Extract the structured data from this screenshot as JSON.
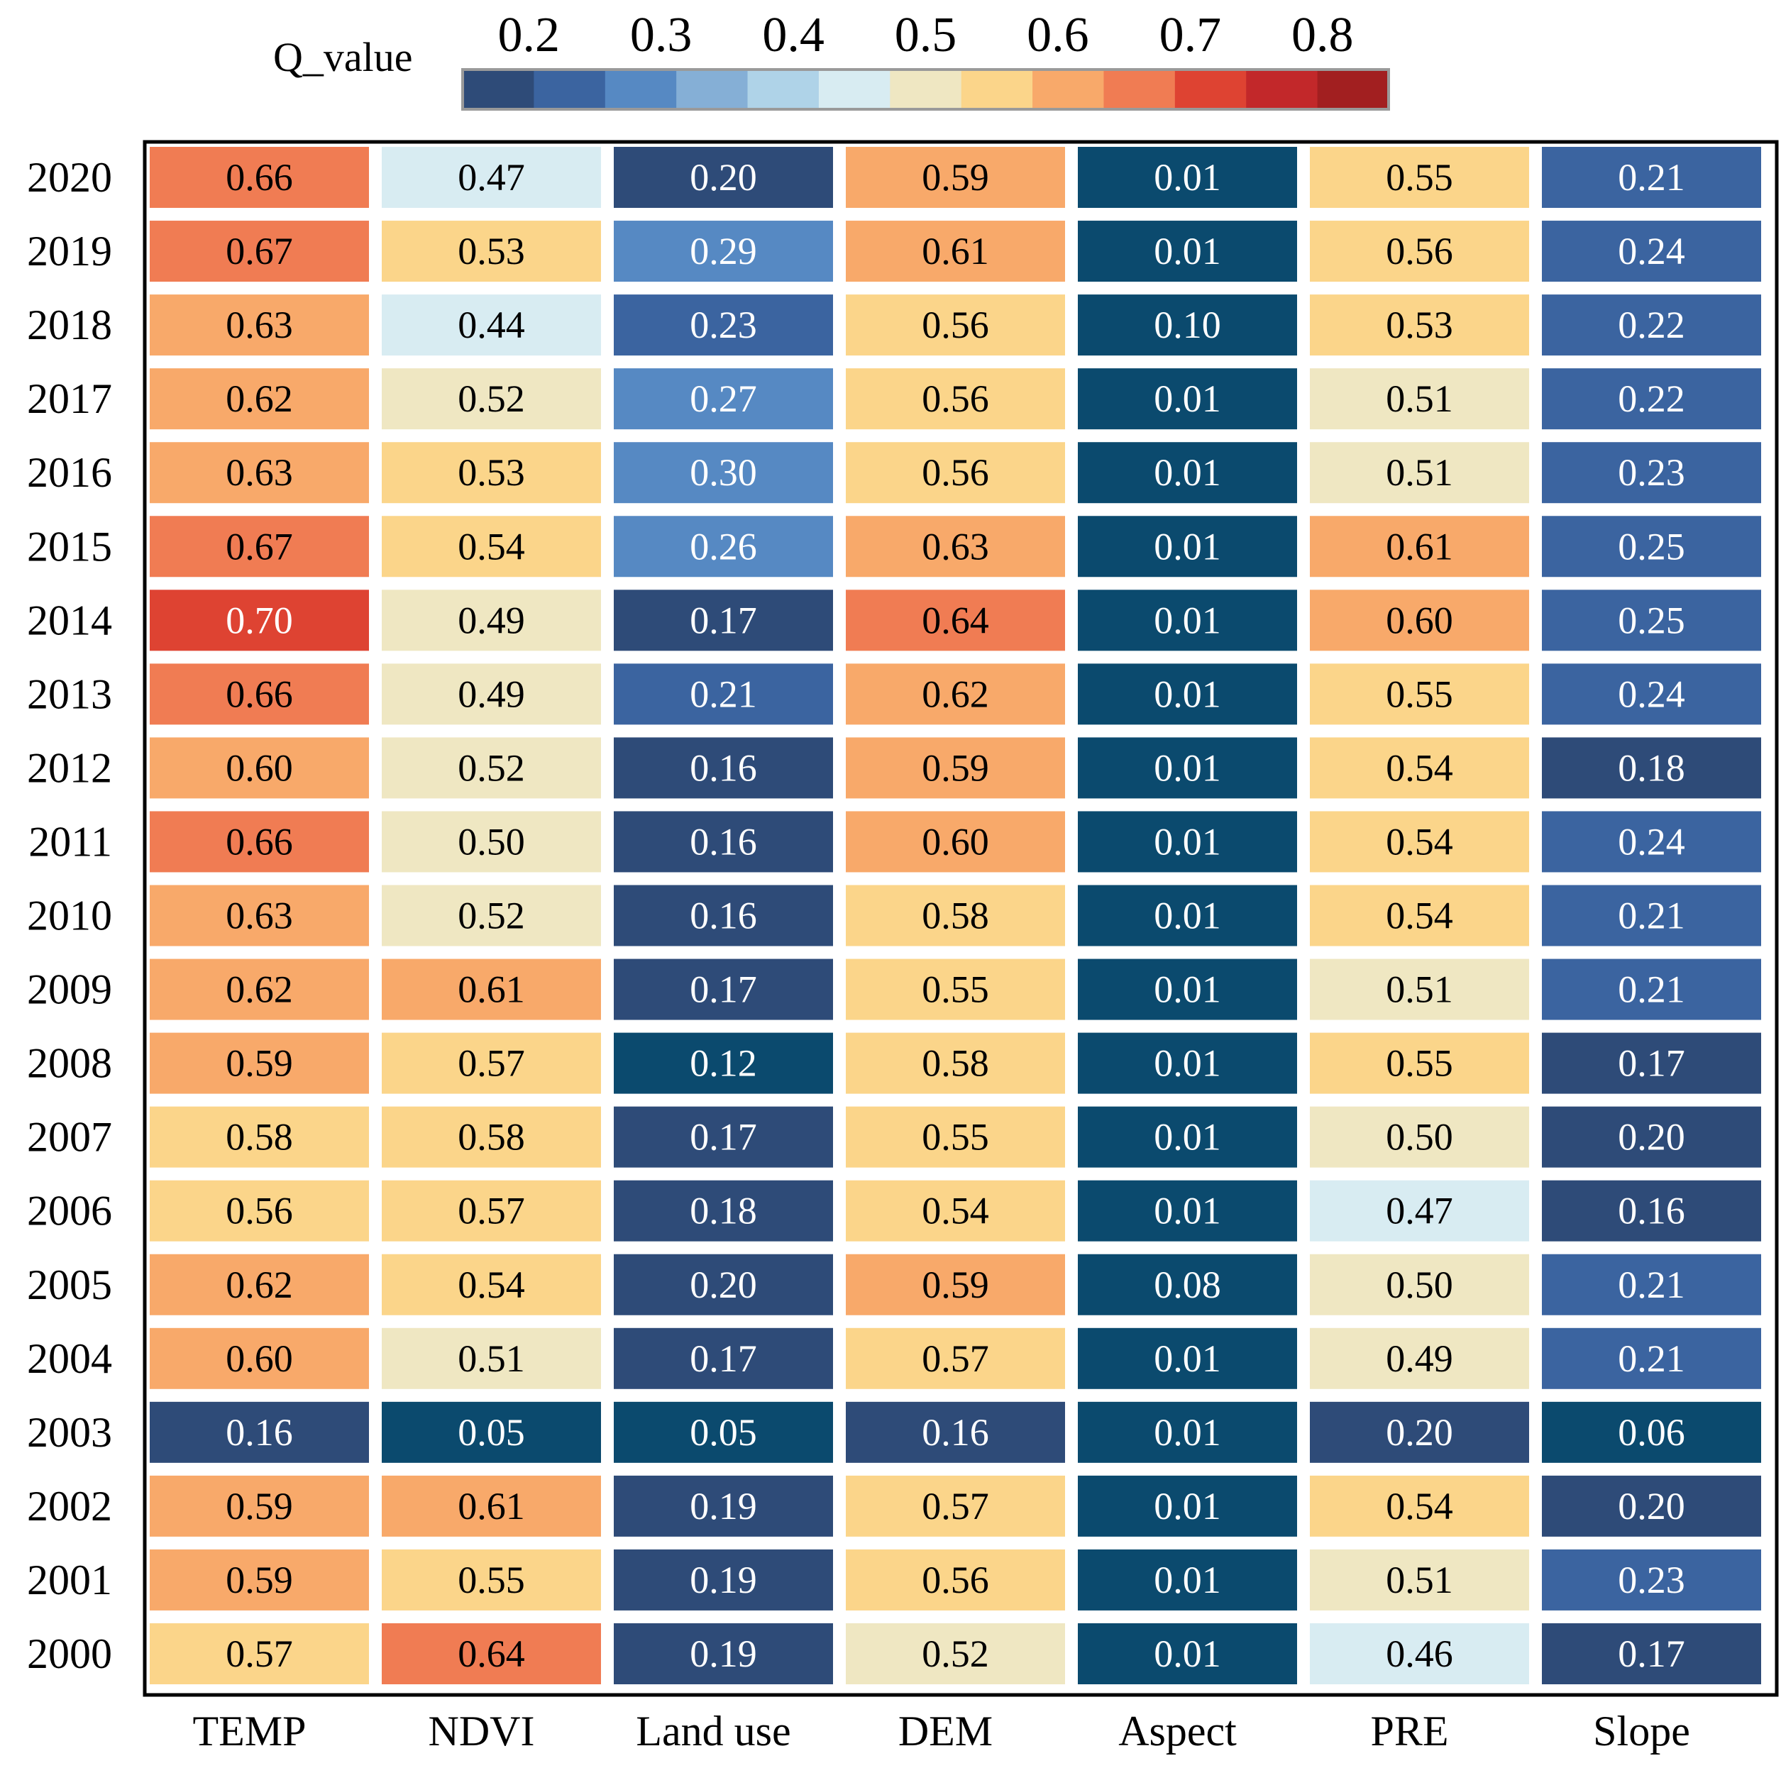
{
  "chart_data": {
    "type": "heatmap",
    "legend_title": "Q_value",
    "legend_ticks": [
      "0.2",
      "0.3",
      "0.4",
      "0.5",
      "0.6",
      "0.7",
      "0.8"
    ],
    "legend_colors": [
      "#2e4b78",
      "#3b64a0",
      "#5689c3",
      "#85afd6",
      "#afd3e8",
      "#d8ecf2",
      "#efe7c2",
      "#fbd58a",
      "#f8a96a",
      "#f07c53",
      "#de4332",
      "#c2282a",
      "#a21f20"
    ],
    "columns": [
      "TEMP",
      "NDVI",
      "Land use",
      "DEM",
      "Aspect",
      "PRE",
      "Slope"
    ],
    "rows": [
      "2020",
      "2019",
      "2018",
      "2017",
      "2016",
      "2015",
      "2014",
      "2013",
      "2012",
      "2011",
      "2010",
      "2009",
      "2008",
      "2007",
      "2006",
      "2005",
      "2004",
      "2003",
      "2002",
      "2001",
      "2000"
    ],
    "values": [
      [
        "0.66",
        "0.47",
        "0.20",
        "0.59",
        "0.01",
        "0.55",
        "0.21"
      ],
      [
        "0.67",
        "0.53",
        "0.29",
        "0.61",
        "0.01",
        "0.56",
        "0.24"
      ],
      [
        "0.63",
        "0.44",
        "0.23",
        "0.56",
        "0.10",
        "0.53",
        "0.22"
      ],
      [
        "0.62",
        "0.52",
        "0.27",
        "0.56",
        "0.01",
        "0.51",
        "0.22"
      ],
      [
        "0.63",
        "0.53",
        "0.30",
        "0.56",
        "0.01",
        "0.51",
        "0.23"
      ],
      [
        "0.67",
        "0.54",
        "0.26",
        "0.63",
        "0.01",
        "0.61",
        "0.25"
      ],
      [
        "0.70",
        "0.49",
        "0.17",
        "0.64",
        "0.01",
        "0.60",
        "0.25"
      ],
      [
        "0.66",
        "0.49",
        "0.21",
        "0.62",
        "0.01",
        "0.55",
        "0.24"
      ],
      [
        "0.60",
        "0.52",
        "0.16",
        "0.59",
        "0.01",
        "0.54",
        "0.18"
      ],
      [
        "0.66",
        "0.50",
        "0.16",
        "0.60",
        "0.01",
        "0.54",
        "0.24"
      ],
      [
        "0.63",
        "0.52",
        "0.16",
        "0.58",
        "0.01",
        "0.54",
        "0.21"
      ],
      [
        "0.62",
        "0.61",
        "0.17",
        "0.55",
        "0.01",
        "0.51",
        "0.21"
      ],
      [
        "0.59",
        "0.57",
        "0.12",
        "0.58",
        "0.01",
        "0.55",
        "0.17"
      ],
      [
        "0.58",
        "0.58",
        "0.17",
        "0.55",
        "0.01",
        "0.50",
        "0.20"
      ],
      [
        "0.56",
        "0.57",
        "0.18",
        "0.54",
        "0.01",
        "0.47",
        "0.16"
      ],
      [
        "0.62",
        "0.54",
        "0.20",
        "0.59",
        "0.08",
        "0.50",
        "0.21"
      ],
      [
        "0.60",
        "0.51",
        "0.17",
        "0.57",
        "0.01",
        "0.49",
        "0.21"
      ],
      [
        "0.16",
        "0.05",
        "0.05",
        "0.16",
        "0.01",
        "0.20",
        "0.06"
      ],
      [
        "0.59",
        "0.61",
        "0.19",
        "0.57",
        "0.01",
        "0.54",
        "0.20"
      ],
      [
        "0.59",
        "0.55",
        "0.19",
        "0.56",
        "0.01",
        "0.51",
        "0.23"
      ],
      [
        "0.57",
        "0.64",
        "0.19",
        "0.52",
        "0.01",
        "0.46",
        "0.17"
      ]
    ],
    "below_range_color": "#0b4a6e",
    "vmin": 0.15,
    "vmax": 0.85
  }
}
